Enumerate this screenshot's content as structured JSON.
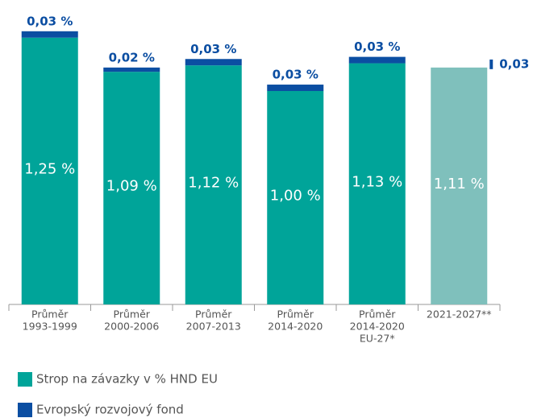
{
  "chart_data": {
    "type": "bar",
    "stacked": true,
    "categories": [
      [
        "Průměr",
        "1993-1999"
      ],
      [
        "Průměr",
        "2000-2006"
      ],
      [
        "Průměr",
        "2007-2013"
      ],
      [
        "Průměr",
        "2014-2020"
      ],
      [
        "Průměr",
        "2014-2020",
        "EU-27*"
      ],
      [
        "2021-2027**"
      ]
    ],
    "series": [
      {
        "name": "Strop na závazky v % HND EU",
        "color": "#00a499",
        "colors": [
          "#00a499",
          "#00a499",
          "#00a499",
          "#00a499",
          "#00a499",
          "#7fc0bc"
        ],
        "values": [
          1.25,
          1.09,
          1.12,
          1.0,
          1.13,
          1.11
        ],
        "value_labels": [
          "1,25 %",
          "1,09 %",
          "1,12 %",
          "1,00 %",
          "1,13 %",
          "1,11 %"
        ]
      },
      {
        "name": "Evropský rozvojový fond",
        "color": "#0b4ea2",
        "values": [
          0.03,
          0.02,
          0.03,
          0.03,
          0.03,
          0.03
        ],
        "value_labels": [
          "0,03 %",
          "0,02 %",
          "0,03 %",
          "0,03 %",
          "0,03 %",
          "0,03"
        ]
      }
    ],
    "ylim": [
      0,
      1.4
    ]
  }
}
